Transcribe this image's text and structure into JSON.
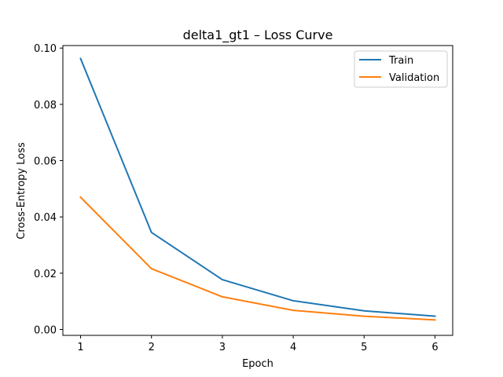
{
  "chart_data": {
    "type": "line",
    "title": "delta1_gt1 – Loss Curve",
    "xlabel": "Epoch",
    "ylabel": "Cross-Entropy Loss",
    "x": [
      1,
      2,
      3,
      4,
      5,
      6
    ],
    "xlim": [
      0.75,
      6.25
    ],
    "ylim": [
      -0.0021,
      0.1009
    ],
    "xticks": [
      1,
      2,
      3,
      4,
      5,
      6
    ],
    "xtick_labels": [
      "1",
      "2",
      "3",
      "4",
      "5",
      "6"
    ],
    "yticks": [
      0.0,
      0.02,
      0.04,
      0.06,
      0.08,
      0.1
    ],
    "ytick_labels": [
      "0.00",
      "0.02",
      "0.04",
      "0.06",
      "0.08",
      "0.10"
    ],
    "grid": false,
    "legend_position": "upper right",
    "series": [
      {
        "name": "Train",
        "color": "#1f77b4",
        "values": [
          0.0963,
          0.0345,
          0.0177,
          0.0102,
          0.0066,
          0.0047
        ]
      },
      {
        "name": "Validation",
        "color": "#ff7f0e",
        "values": [
          0.047,
          0.0216,
          0.0116,
          0.0068,
          0.0047,
          0.0034
        ]
      }
    ]
  }
}
